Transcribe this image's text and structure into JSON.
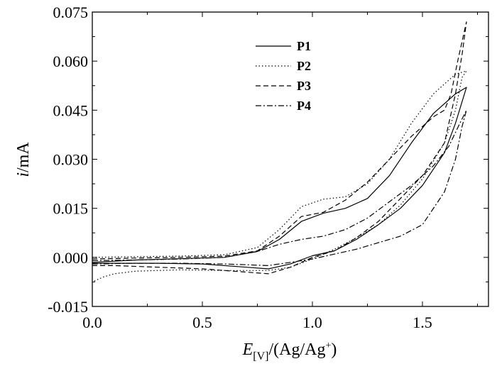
{
  "chart_data": {
    "type": "line",
    "title": "",
    "x_axis": {
      "label_italic": "E",
      "label_subscript": "[V]",
      "label_rest": "/(Ag/Ag",
      "label_superscript": "+",
      "label_close": ")",
      "range": [
        0.0,
        1.8
      ],
      "ticks": [
        0.0,
        0.5,
        1.0,
        1.5
      ],
      "tick_labels": [
        "0.0",
        "0.5",
        "1.0",
        "1.5"
      ]
    },
    "y_axis": {
      "label_italic": "i",
      "label_rest": "/mA",
      "range": [
        -0.015,
        0.075
      ],
      "ticks": [
        -0.015,
        0.0,
        0.015,
        0.03,
        0.045,
        0.06,
        0.075
      ],
      "tick_labels": [
        "-0.015",
        "0.000",
        "0.015",
        "0.030",
        "0.045",
        "0.060",
        "0.075"
      ]
    },
    "legend": {
      "position": "top-center"
    },
    "grid": false,
    "series": [
      {
        "name": "P1",
        "dash": "solid",
        "forward": [
          [
            0.0,
            -0.0015
          ],
          [
            0.2,
            -0.0008
          ],
          [
            0.4,
            -0.0004
          ],
          [
            0.6,
            0.0
          ],
          [
            0.75,
            0.0018
          ],
          [
            0.85,
            0.0055
          ],
          [
            0.95,
            0.011
          ],
          [
            1.05,
            0.0135
          ],
          [
            1.15,
            0.015
          ],
          [
            1.25,
            0.018
          ],
          [
            1.35,
            0.025
          ],
          [
            1.45,
            0.035
          ],
          [
            1.55,
            0.044
          ],
          [
            1.65,
            0.05
          ],
          [
            1.7,
            0.052
          ]
        ],
        "reverse": [
          [
            1.7,
            0.052
          ],
          [
            1.65,
            0.041
          ],
          [
            1.6,
            0.032
          ],
          [
            1.5,
            0.022
          ],
          [
            1.4,
            0.015
          ],
          [
            1.3,
            0.01
          ],
          [
            1.2,
            0.0055
          ],
          [
            1.1,
            0.002
          ],
          [
            1.0,
            0.0005
          ],
          [
            0.9,
            -0.002
          ],
          [
            0.8,
            -0.0035
          ],
          [
            0.7,
            -0.003
          ],
          [
            0.5,
            -0.002
          ],
          [
            0.3,
            -0.0018
          ],
          [
            0.1,
            -0.0018
          ],
          [
            0.0,
            -0.0018
          ]
        ]
      },
      {
        "name": "P2",
        "dash": "dotted",
        "forward": [
          [
            0.0,
            0.0
          ],
          [
            0.2,
            0.0002
          ],
          [
            0.4,
            0.0004
          ],
          [
            0.6,
            0.0008
          ],
          [
            0.75,
            0.003
          ],
          [
            0.85,
            0.0085
          ],
          [
            0.95,
            0.0155
          ],
          [
            1.05,
            0.0178
          ],
          [
            1.15,
            0.0185
          ],
          [
            1.25,
            0.0225
          ],
          [
            1.35,
            0.03
          ],
          [
            1.45,
            0.041
          ],
          [
            1.55,
            0.05
          ],
          [
            1.65,
            0.056
          ],
          [
            1.7,
            0.057
          ]
        ],
        "reverse": [
          [
            1.7,
            0.057
          ],
          [
            1.68,
            0.055
          ],
          [
            1.65,
            0.045
          ],
          [
            1.6,
            0.035
          ],
          [
            1.5,
            0.024
          ],
          [
            1.4,
            0.016
          ],
          [
            1.3,
            0.01
          ],
          [
            1.2,
            0.006
          ],
          [
            1.1,
            0.0025
          ],
          [
            1.0,
            -0.0005
          ],
          [
            0.9,
            -0.003
          ],
          [
            0.8,
            -0.004
          ],
          [
            0.6,
            -0.004
          ],
          [
            0.4,
            -0.0038
          ],
          [
            0.2,
            -0.0042
          ],
          [
            0.1,
            -0.005
          ],
          [
            0.05,
            -0.006
          ],
          [
            0.0,
            -0.0075
          ]
        ]
      },
      {
        "name": "P3",
        "dash": "dashed",
        "forward": [
          [
            0.0,
            -0.0005
          ],
          [
            0.2,
            -0.0002
          ],
          [
            0.4,
            0.0
          ],
          [
            0.6,
            0.0004
          ],
          [
            0.75,
            0.002
          ],
          [
            0.85,
            0.0065
          ],
          [
            0.95,
            0.0125
          ],
          [
            1.05,
            0.0138
          ],
          [
            1.15,
            0.0175
          ],
          [
            1.25,
            0.023
          ],
          [
            1.35,
            0.03
          ],
          [
            1.45,
            0.037
          ],
          [
            1.55,
            0.043
          ],
          [
            1.6,
            0.045
          ],
          [
            1.63,
            0.05
          ],
          [
            1.66,
            0.06
          ],
          [
            1.7,
            0.072
          ]
        ],
        "reverse": [
          [
            1.7,
            0.072
          ],
          [
            1.68,
            0.062
          ],
          [
            1.65,
            0.05
          ],
          [
            1.6,
            0.035
          ],
          [
            1.5,
            0.025
          ],
          [
            1.4,
            0.018
          ],
          [
            1.3,
            0.011
          ],
          [
            1.2,
            0.006
          ],
          [
            1.1,
            0.002
          ],
          [
            1.0,
            0.0
          ],
          [
            0.9,
            -0.003
          ],
          [
            0.8,
            -0.005
          ],
          [
            0.7,
            -0.0045
          ],
          [
            0.5,
            -0.0035
          ],
          [
            0.3,
            -0.003
          ],
          [
            0.1,
            -0.0025
          ],
          [
            0.0,
            -0.0025
          ]
        ]
      },
      {
        "name": "P4",
        "dash": "dashdot",
        "forward": [
          [
            0.0,
            -0.001
          ],
          [
            0.2,
            -0.0008
          ],
          [
            0.4,
            -0.0005
          ],
          [
            0.6,
            0.0
          ],
          [
            0.75,
            0.0018
          ],
          [
            0.85,
            0.004
          ],
          [
            0.95,
            0.0055
          ],
          [
            1.05,
            0.0065
          ],
          [
            1.15,
            0.0085
          ],
          [
            1.25,
            0.012
          ],
          [
            1.35,
            0.017
          ],
          [
            1.45,
            0.022
          ],
          [
            1.55,
            0.028
          ],
          [
            1.62,
            0.034
          ],
          [
            1.67,
            0.041
          ],
          [
            1.7,
            0.045
          ]
        ],
        "reverse": [
          [
            1.7,
            0.045
          ],
          [
            1.68,
            0.04
          ],
          [
            1.65,
            0.03
          ],
          [
            1.6,
            0.02
          ],
          [
            1.5,
            0.01
          ],
          [
            1.4,
            0.0065
          ],
          [
            1.3,
            0.0045
          ],
          [
            1.2,
            0.0025
          ],
          [
            1.1,
            0.001
          ],
          [
            1.0,
            -0.0005
          ],
          [
            0.9,
            -0.0015
          ],
          [
            0.8,
            -0.0025
          ],
          [
            0.6,
            -0.002
          ],
          [
            0.4,
            -0.0018
          ],
          [
            0.2,
            -0.0018
          ],
          [
            0.0,
            -0.002
          ]
        ]
      }
    ]
  }
}
